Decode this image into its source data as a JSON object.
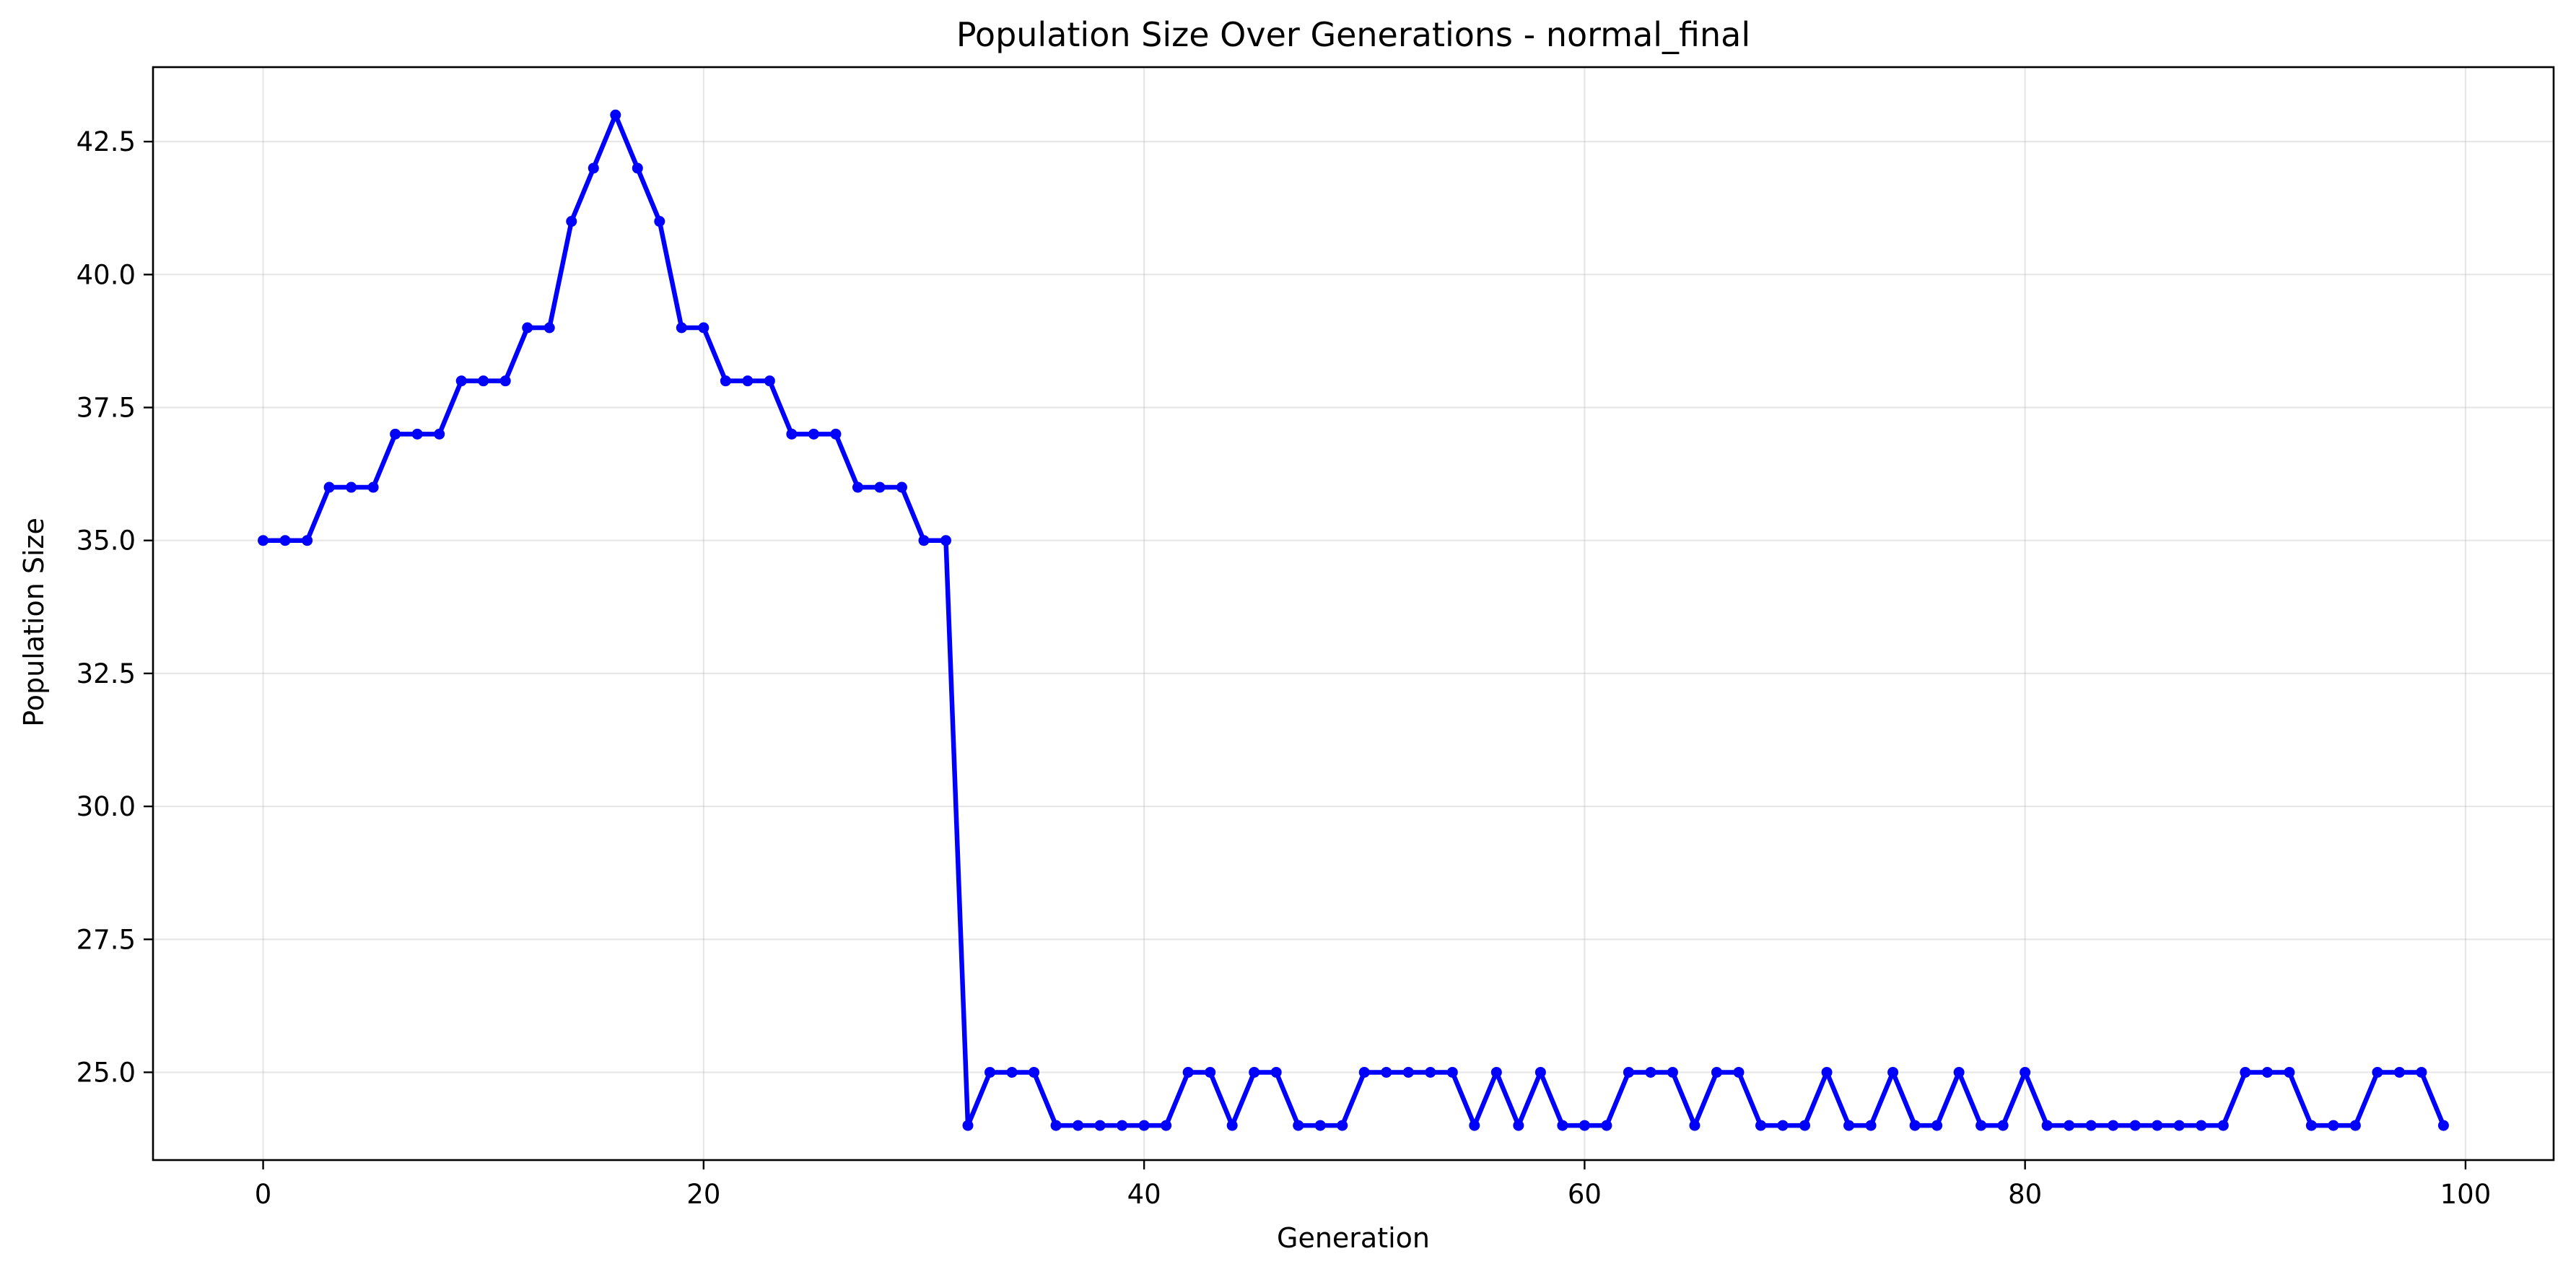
{
  "chart_data": {
    "type": "line",
    "title": "Population Size Over Generations - normal_final",
    "xlabel": "Generation",
    "ylabel": "Population Size",
    "xlim": [
      -5,
      104
    ],
    "ylim": [
      23.35,
      43.9
    ],
    "xticks": [
      0,
      20,
      40,
      60,
      80,
      100
    ],
    "xtick_labels": [
      "0",
      "20",
      "40",
      "60",
      "80",
      "100"
    ],
    "yticks": [
      25.0,
      27.5,
      30.0,
      32.5,
      35.0,
      37.5,
      40.0,
      42.5
    ],
    "ytick_labels": [
      "25.0",
      "27.5",
      "30.0",
      "32.5",
      "35.0",
      "37.5",
      "40.0",
      "42.5"
    ],
    "grid": true,
    "series": [
      {
        "color": "#0000ff",
        "marker": "circle",
        "x": [
          0,
          1,
          2,
          3,
          4,
          5,
          6,
          7,
          8,
          9,
          10,
          11,
          12,
          13,
          14,
          15,
          16,
          17,
          18,
          19,
          20,
          21,
          22,
          23,
          24,
          25,
          26,
          27,
          28,
          29,
          30,
          31,
          32,
          33,
          34,
          35,
          36,
          37,
          38,
          39,
          40,
          41,
          42,
          43,
          44,
          45,
          46,
          47,
          48,
          49,
          50,
          51,
          52,
          53,
          54,
          55,
          56,
          57,
          58,
          59,
          60,
          61,
          62,
          63,
          64,
          65,
          66,
          67,
          68,
          69,
          70,
          71,
          72,
          73,
          74,
          75,
          76,
          77,
          78,
          79,
          80,
          81,
          82,
          83,
          84,
          85,
          86,
          87,
          88,
          89,
          90,
          91,
          92,
          93,
          94,
          95,
          96,
          97,
          98,
          99
        ],
        "y": [
          35,
          35,
          35,
          36,
          36,
          36,
          37,
          37,
          37,
          38,
          38,
          38,
          39,
          39,
          41,
          42,
          43,
          42,
          41,
          39,
          39,
          38,
          38,
          38,
          37,
          37,
          37,
          36,
          36,
          36,
          35,
          35,
          24,
          25,
          25,
          25,
          24,
          24,
          24,
          24,
          24,
          24,
          25,
          25,
          24,
          25,
          25,
          24,
          24,
          24,
          25,
          25,
          25,
          25,
          25,
          24,
          25,
          24,
          25,
          24,
          24,
          24,
          25,
          25,
          25,
          24,
          25,
          25,
          24,
          24,
          24,
          25,
          24,
          24,
          25,
          24,
          24,
          25,
          24,
          24,
          25,
          24,
          24,
          24,
          24,
          24,
          24,
          24,
          24,
          24,
          25,
          25,
          25,
          24,
          24,
          24,
          25,
          25,
          25,
          24
        ]
      }
    ]
  }
}
